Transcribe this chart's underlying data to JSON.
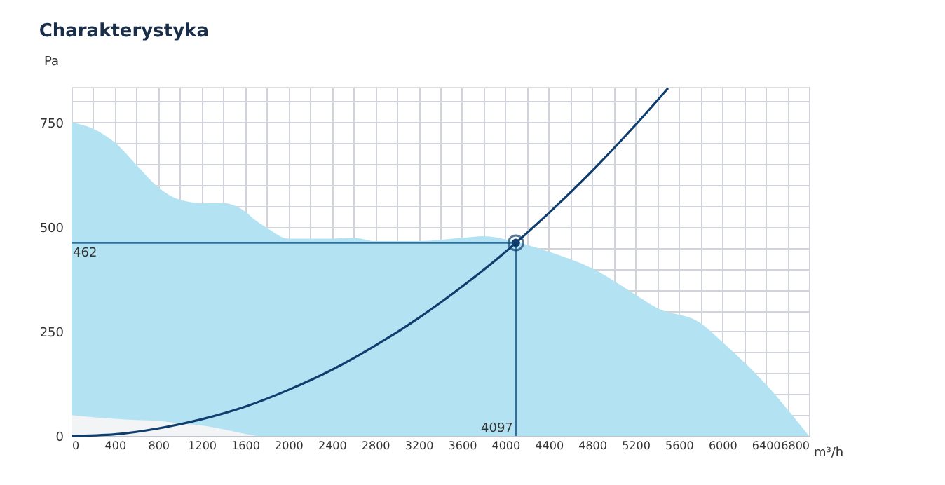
{
  "chart_data": {
    "type": "line",
    "title": "Charakterystyka",
    "xlabel": "m³/h",
    "ylabel": "Pa",
    "xlim": [
      0,
      6800
    ],
    "ylim": [
      0,
      835
    ],
    "xticks": [
      0,
      {
        "value": 200,
        "label": null
      },
      400,
      {
        "value": 600,
        "label": null
      },
      800,
      {
        "value": 1000,
        "label": null
      },
      1200,
      {
        "value": 1400,
        "label": null
      },
      1600,
      {
        "value": 1800,
        "label": null
      },
      2000,
      {
        "value": 2200,
        "label": null
      },
      2400,
      {
        "value": 2600,
        "label": null
      },
      2800,
      {
        "value": 3000,
        "label": null
      },
      3200,
      {
        "value": 3400,
        "label": null
      },
      3600,
      {
        "value": 3800,
        "label": null
      },
      4000,
      {
        "value": 4200,
        "label": null
      },
      4400,
      {
        "value": 4600,
        "label": null
      },
      4800,
      {
        "value": 5000,
        "label": null
      },
      5200,
      {
        "value": 5400,
        "label": null
      },
      5600,
      {
        "value": 5800,
        "label": null
      },
      6000,
      {
        "value": 6200,
        "label": null
      },
      6400,
      {
        "value": 6600,
        "label": null
      },
      6800
    ],
    "yticks": [
      0,
      {
        "value": 50,
        "label": null
      },
      {
        "value": 100,
        "label": null
      },
      {
        "value": 150,
        "label": null
      },
      {
        "value": 200,
        "label": null
      },
      250,
      {
        "value": 300,
        "label": null
      },
      {
        "value": 350,
        "label": null
      },
      {
        "value": 400,
        "label": null
      },
      {
        "value": 450,
        "label": null
      },
      500,
      {
        "value": 550,
        "label": null
      },
      {
        "value": 600,
        "label": null
      },
      {
        "value": 650,
        "label": null
      },
      {
        "value": 700,
        "label": null
      },
      750,
      {
        "value": 800,
        "label": null
      }
    ],
    "grid": true,
    "series": [
      {
        "type": "area",
        "color": "#b3e3f2",
        "x": [
          0,
          200,
          400,
          600,
          800,
          1000,
          1200,
          1400,
          1600,
          1700,
          1800,
          2000,
          2400,
          2600,
          2800,
          3200,
          3600,
          3800,
          4100,
          4400,
          4800,
          5200,
          5400,
          5800,
          6000,
          6400,
          6800
        ],
        "values": [
          750,
          735,
          702,
          648,
          595,
          565,
          557,
          557,
          537,
          515,
          498,
          472,
          472,
          474,
          466,
          466,
          474,
          478,
          464,
          441,
          401,
          338,
          306,
          270,
          225,
          124,
          0
        ]
      },
      {
        "type": "area",
        "color": "#f3f4f6",
        "x": [
          0,
          200,
          400,
          600,
          800,
          1000,
          1200,
          1400,
          1600,
          1700
        ],
        "values": [
          50,
          45,
          41,
          38,
          36,
          30,
          25,
          16,
          5,
          0
        ]
      },
      {
        "color": "#0f3e6e",
        "x": [
          0,
          400,
          800,
          1200,
          1600,
          2000,
          2400,
          2800,
          3200,
          3600,
          4000,
          4097,
          4400,
          4800,
          5200,
          5500
        ],
        "values": [
          0,
          4,
          18,
          40,
          70,
          110,
          158,
          216,
          282,
          357,
          440,
          462,
          533,
          634,
          744,
          832
        ]
      },
      {
        "type": "scatter",
        "color": "#0f3e6e",
        "marker": "circle",
        "x": [
          4097
        ],
        "values": [
          462
        ]
      }
    ],
    "ref_lines": [
      {
        "axis": "y",
        "value": 462,
        "label": "462",
        "color": "#2f6f9a"
      },
      {
        "axis": "x",
        "value": 4097,
        "label": "4097",
        "color": "#2f6f9a"
      }
    ]
  }
}
